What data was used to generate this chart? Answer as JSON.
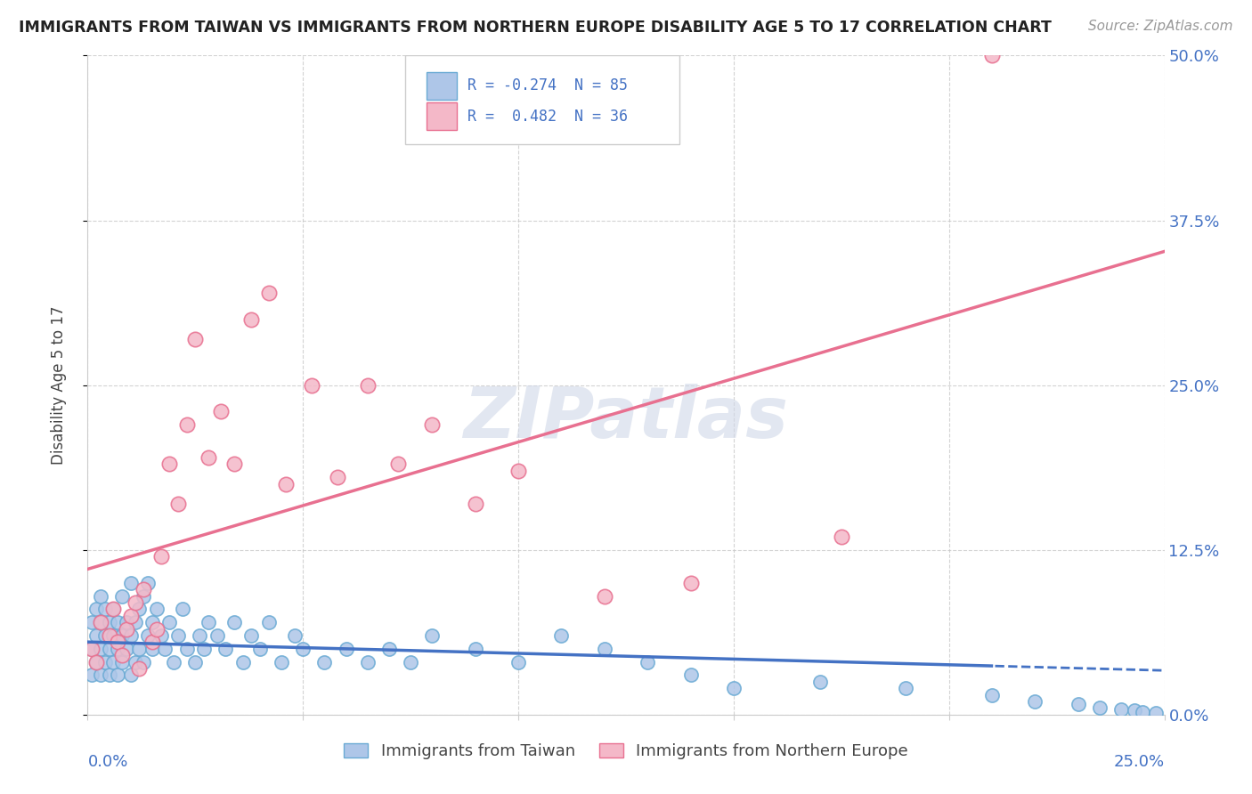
{
  "title": "IMMIGRANTS FROM TAIWAN VS IMMIGRANTS FROM NORTHERN EUROPE DISABILITY AGE 5 TO 17 CORRELATION CHART",
  "source": "Source: ZipAtlas.com",
  "ylabel_label": "Disability Age 5 to 17",
  "ytick_labels": [
    "0.0%",
    "12.5%",
    "25.0%",
    "37.5%",
    "50.0%"
  ],
  "ytick_values": [
    0,
    0.125,
    0.25,
    0.375,
    0.5
  ],
  "xlim": [
    0,
    0.25
  ],
  "ylim": [
    0,
    0.5
  ],
  "taiwan_color": "#aec6e8",
  "taiwan_edge": "#6aaad4",
  "northern_europe_color": "#f4b8c8",
  "northern_europe_edge": "#e87090",
  "taiwan_R": -0.274,
  "taiwan_N": 85,
  "northern_europe_R": 0.482,
  "northern_europe_N": 36,
  "legend_label_taiwan": "Immigrants from Taiwan",
  "legend_label_northern": "Immigrants from Northern Europe",
  "taiwan_line_color": "#4472c4",
  "northern_europe_line_color": "#e87090",
  "taiwan_scatter_x": [
    0.001,
    0.001,
    0.001,
    0.002,
    0.002,
    0.002,
    0.003,
    0.003,
    0.003,
    0.003,
    0.004,
    0.004,
    0.004,
    0.005,
    0.005,
    0.005,
    0.006,
    0.006,
    0.006,
    0.007,
    0.007,
    0.007,
    0.008,
    0.008,
    0.008,
    0.009,
    0.009,
    0.01,
    0.01,
    0.01,
    0.011,
    0.011,
    0.012,
    0.012,
    0.013,
    0.013,
    0.014,
    0.014,
    0.015,
    0.015,
    0.016,
    0.017,
    0.018,
    0.019,
    0.02,
    0.021,
    0.022,
    0.023,
    0.025,
    0.026,
    0.027,
    0.028,
    0.03,
    0.032,
    0.034,
    0.036,
    0.038,
    0.04,
    0.042,
    0.045,
    0.048,
    0.05,
    0.055,
    0.06,
    0.065,
    0.07,
    0.075,
    0.08,
    0.09,
    0.1,
    0.11,
    0.12,
    0.13,
    0.14,
    0.15,
    0.17,
    0.19,
    0.21,
    0.22,
    0.23,
    0.235,
    0.24,
    0.243,
    0.245,
    0.248
  ],
  "taiwan_scatter_y": [
    0.05,
    0.03,
    0.07,
    0.04,
    0.06,
    0.08,
    0.03,
    0.05,
    0.07,
    0.09,
    0.04,
    0.06,
    0.08,
    0.03,
    0.05,
    0.07,
    0.04,
    0.06,
    0.08,
    0.03,
    0.05,
    0.07,
    0.04,
    0.06,
    0.09,
    0.05,
    0.07,
    0.03,
    0.06,
    0.1,
    0.04,
    0.07,
    0.05,
    0.08,
    0.04,
    0.09,
    0.06,
    0.1,
    0.05,
    0.07,
    0.08,
    0.06,
    0.05,
    0.07,
    0.04,
    0.06,
    0.08,
    0.05,
    0.04,
    0.06,
    0.05,
    0.07,
    0.06,
    0.05,
    0.07,
    0.04,
    0.06,
    0.05,
    0.07,
    0.04,
    0.06,
    0.05,
    0.04,
    0.05,
    0.04,
    0.05,
    0.04,
    0.06,
    0.05,
    0.04,
    0.06,
    0.05,
    0.04,
    0.03,
    0.02,
    0.025,
    0.02,
    0.015,
    0.01,
    0.008,
    0.005,
    0.004,
    0.003,
    0.002,
    0.001
  ],
  "northern_scatter_x": [
    0.001,
    0.002,
    0.003,
    0.005,
    0.006,
    0.007,
    0.008,
    0.009,
    0.01,
    0.011,
    0.012,
    0.013,
    0.015,
    0.016,
    0.017,
    0.019,
    0.021,
    0.023,
    0.025,
    0.028,
    0.031,
    0.034,
    0.038,
    0.042,
    0.046,
    0.052,
    0.058,
    0.065,
    0.072,
    0.08,
    0.09,
    0.1,
    0.12,
    0.14,
    0.175,
    0.21
  ],
  "northern_scatter_y": [
    0.05,
    0.04,
    0.07,
    0.06,
    0.08,
    0.055,
    0.045,
    0.065,
    0.075,
    0.085,
    0.035,
    0.095,
    0.055,
    0.065,
    0.12,
    0.19,
    0.16,
    0.22,
    0.285,
    0.195,
    0.23,
    0.19,
    0.3,
    0.32,
    0.175,
    0.25,
    0.18,
    0.25,
    0.19,
    0.22,
    0.16,
    0.185,
    0.09,
    0.1,
    0.135,
    0.5
  ]
}
